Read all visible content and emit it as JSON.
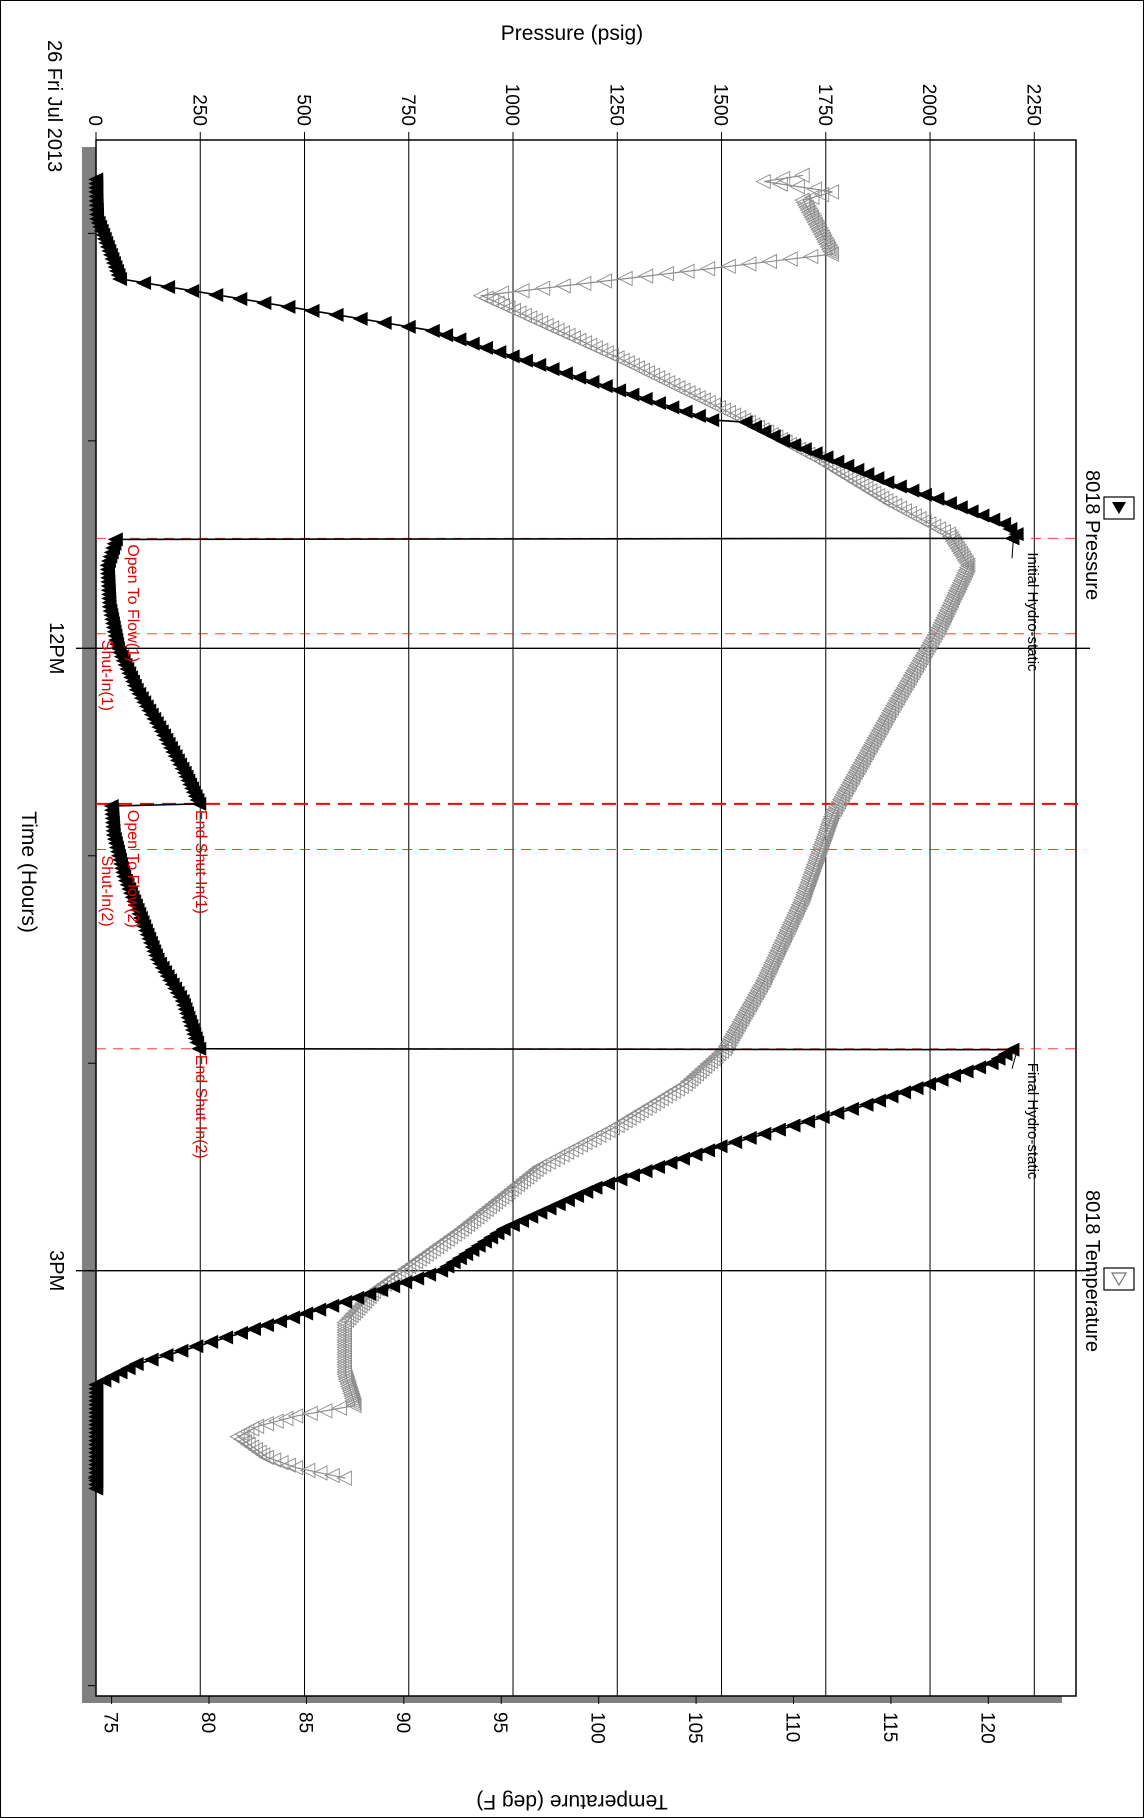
{
  "chart_data": {
    "type": "line",
    "orientation": "rotated-90-clockwise",
    "date_label": "26 Fri Jul 2013",
    "xlabel": "Time (Hours)",
    "x_ticks": [
      {
        "label": "12PM",
        "hour": 12.0
      },
      {
        "label": "3PM",
        "hour": 15.0
      }
    ],
    "x_range_hours": [
      9.55,
      17.05
    ],
    "y_left": {
      "label": "Pressure (psig)",
      "range": [
        0,
        2350
      ],
      "ticks": [
        0,
        250,
        500,
        750,
        1000,
        1250,
        1500,
        1750,
        2000,
        2250
      ]
    },
    "y_right": {
      "label": "Temperature (deg F)",
      "range": [
        74.2,
        124.5
      ],
      "ticks": [
        75,
        80,
        85,
        90,
        95,
        100,
        105,
        110,
        115,
        120
      ]
    },
    "grid": true,
    "legend": [
      {
        "name": "8018 Pressure",
        "marker": "filled-triangle",
        "color": "#000000"
      },
      {
        "name": "8018 Temperature",
        "marker": "open-triangle",
        "color": "#888888"
      }
    ],
    "events": [
      {
        "label": "Open To Flow(1)",
        "hour": 11.47,
        "style": "dashed",
        "thick": false
      },
      {
        "label": "Shut-In(1)",
        "hour": 11.93,
        "style": "dashed",
        "thick": false
      },
      {
        "label": "End Shut-In(1)",
        "hour": 12.75,
        "style": "dashed",
        "thick": true
      },
      {
        "label": "Open To Flow(2)",
        "hour": 12.75,
        "style": "none",
        "thick": false
      },
      {
        "label": "Shut-In(2)",
        "hour": 12.97,
        "style": "dashed",
        "thick": false
      },
      {
        "label": "End Shut-In(2)",
        "hour": 13.93,
        "style": "dashed",
        "thick": false
      }
    ],
    "annotations": [
      {
        "label": "Initial Hydro-static",
        "hour": 11.47,
        "value": 2200
      },
      {
        "label": "Final Hydro-static",
        "hour": 13.93,
        "value": 2210
      }
    ],
    "series": [
      {
        "name": "8018 Pressure",
        "axis": "left",
        "points": [
          [
            9.74,
            3
          ],
          [
            9.8,
            3
          ],
          [
            9.93,
            5
          ],
          [
            10.22,
            60
          ],
          [
            10.47,
            810
          ],
          [
            10.9,
            1480
          ],
          [
            10.91,
            1560
          ],
          [
            11.0,
            1650
          ],
          [
            11.1,
            1780
          ],
          [
            11.2,
            1900
          ],
          [
            11.3,
            2050
          ],
          [
            11.4,
            2180
          ],
          [
            11.45,
            2210
          ],
          [
            11.47,
            2200
          ],
          [
            11.475,
            50
          ],
          [
            11.6,
            30
          ],
          [
            11.8,
            35
          ],
          [
            12.0,
            55
          ],
          [
            12.2,
            100
          ],
          [
            12.4,
            160
          ],
          [
            12.6,
            215
          ],
          [
            12.75,
            250
          ],
          [
            12.76,
            40
          ],
          [
            12.9,
            45
          ],
          [
            13.1,
            70
          ],
          [
            13.3,
            110
          ],
          [
            13.5,
            150
          ],
          [
            13.7,
            210
          ],
          [
            13.9,
            245
          ],
          [
            13.93,
            250
          ],
          [
            13.935,
            2200
          ],
          [
            14.0,
            2150
          ],
          [
            14.2,
            1850
          ],
          [
            14.4,
            1500
          ],
          [
            14.6,
            1200
          ],
          [
            14.8,
            980
          ],
          [
            15.0,
            830
          ],
          [
            15.15,
            600
          ],
          [
            15.3,
            350
          ],
          [
            15.45,
            100
          ],
          [
            15.55,
            3
          ],
          [
            15.8,
            3
          ],
          [
            16.05,
            3
          ]
        ]
      },
      {
        "name": "8018 Temperature",
        "axis": "right",
        "points": [
          [
            9.72,
            110.5
          ],
          [
            9.75,
            108.5
          ],
          [
            9.8,
            112.0
          ],
          [
            9.84,
            110.5
          ],
          [
            10.1,
            112.0
          ],
          [
            10.3,
            94.0
          ],
          [
            10.6,
            101.0
          ],
          [
            10.9,
            107.5
          ],
          [
            11.1,
            111.5
          ],
          [
            11.3,
            115.0
          ],
          [
            11.45,
            118.0
          ],
          [
            11.6,
            119.0
          ],
          [
            11.9,
            117.5
          ],
          [
            12.3,
            115.0
          ],
          [
            12.8,
            112.0
          ],
          [
            13.2,
            110.5
          ],
          [
            13.6,
            108.5
          ],
          [
            13.93,
            106.5
          ],
          [
            14.1,
            104.5
          ],
          [
            14.3,
            101.0
          ],
          [
            14.5,
            97.0
          ],
          [
            14.8,
            93.0
          ],
          [
            15.1,
            88.5
          ],
          [
            15.25,
            87.0
          ],
          [
            15.5,
            87.0
          ],
          [
            15.65,
            87.5
          ],
          [
            15.7,
            84.5
          ],
          [
            15.75,
            82.5
          ],
          [
            15.8,
            81.5
          ],
          [
            15.9,
            83.0
          ],
          [
            15.95,
            84.5
          ],
          [
            16.0,
            87.0
          ]
        ]
      }
    ]
  }
}
